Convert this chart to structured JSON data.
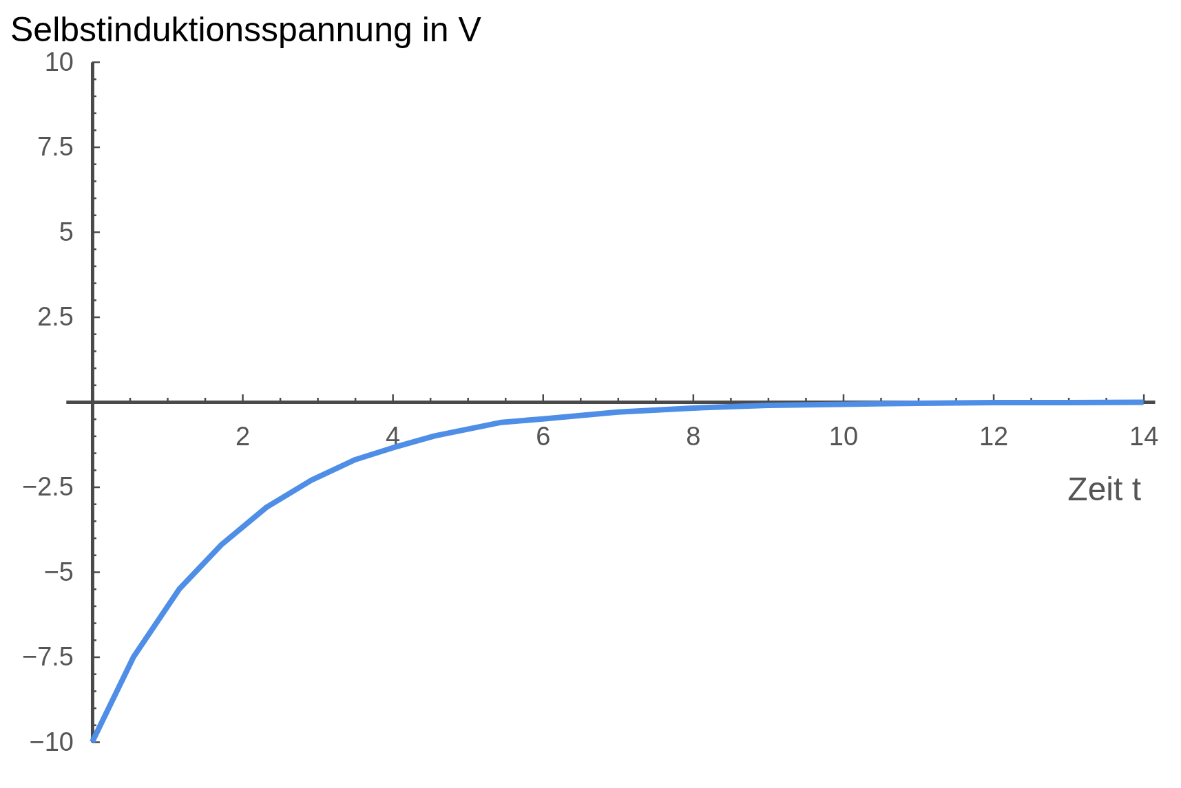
{
  "chart_data": {
    "type": "line",
    "ylabel": "Selbstinduktionsspannung in V",
    "xlabel": "Zeit t",
    "x": [
      0,
      0.55,
      1.16,
      1.72,
      2.32,
      2.92,
      3.5,
      4.0,
      4.56,
      5.45,
      6,
      7,
      8,
      9,
      10,
      11,
      12,
      13,
      14
    ],
    "series": [
      {
        "color": "#4f8ee6",
        "values": [
          -10,
          -7.5,
          -5.5,
          -4.2,
          -3.1,
          -2.3,
          -1.7,
          -1.35,
          -1.0,
          -0.6,
          -0.5,
          -0.3,
          -0.18,
          -0.1,
          -0.07,
          -0.04,
          -0.02,
          -0.02,
          -0.01
        ]
      }
    ],
    "xlim": [
      -0.35,
      14.15
    ],
    "ylim": [
      -10,
      10
    ],
    "xticks": [
      {
        "value": 0.5,
        "label": null
      },
      {
        "value": 1,
        "label": null
      },
      {
        "value": 1.5,
        "label": null
      },
      2,
      {
        "value": 2.5,
        "label": null
      },
      {
        "value": 3,
        "label": null
      },
      {
        "value": 3.5,
        "label": null
      },
      4,
      {
        "value": 4.5,
        "label": null
      },
      {
        "value": 5,
        "label": null
      },
      {
        "value": 5.5,
        "label": null
      },
      6,
      {
        "value": 6.5,
        "label": null
      },
      {
        "value": 7,
        "label": null
      },
      {
        "value": 7.5,
        "label": null
      },
      8,
      {
        "value": 8.5,
        "label": null
      },
      {
        "value": 9,
        "label": null
      },
      {
        "value": 9.5,
        "label": null
      },
      10,
      {
        "value": 10.5,
        "label": null
      },
      {
        "value": 11,
        "label": null
      },
      {
        "value": 11.5,
        "label": null
      },
      12,
      {
        "value": 12.5,
        "label": null
      },
      {
        "value": 13,
        "label": null
      },
      {
        "value": 13.5,
        "label": null
      },
      14
    ],
    "yticks": [
      {
        "value": -10,
        "label": "−10"
      },
      {
        "value": -9.5,
        "label": null
      },
      {
        "value": -9,
        "label": null
      },
      {
        "value": -8.5,
        "label": null
      },
      {
        "value": -8,
        "label": null
      },
      {
        "value": -7.5,
        "label": "−7.5"
      },
      {
        "value": -7,
        "label": null
      },
      {
        "value": -6.5,
        "label": null
      },
      {
        "value": -6,
        "label": null
      },
      {
        "value": -5.5,
        "label": null
      },
      {
        "value": -5,
        "label": "−5"
      },
      {
        "value": -4.5,
        "label": null
      },
      {
        "value": -4,
        "label": null
      },
      {
        "value": -3.5,
        "label": null
      },
      {
        "value": -3,
        "label": null
      },
      {
        "value": -2.5,
        "label": "−2.5"
      },
      {
        "value": -2,
        "label": null
      },
      {
        "value": -1.5,
        "label": null
      },
      {
        "value": -1,
        "label": null
      },
      {
        "value": -0.5,
        "label": null
      },
      {
        "value": 0.5,
        "label": null
      },
      {
        "value": 1,
        "label": null
      },
      {
        "value": 1.5,
        "label": null
      },
      {
        "value": 2,
        "label": null
      },
      2.5,
      {
        "value": 3,
        "label": null
      },
      {
        "value": 3.5,
        "label": null
      },
      {
        "value": 4,
        "label": null
      },
      {
        "value": 4.5,
        "label": null
      },
      5,
      {
        "value": 5.5,
        "label": null
      },
      {
        "value": 6,
        "label": null
      },
      {
        "value": 6.5,
        "label": null
      },
      {
        "value": 7,
        "label": null
      },
      7.5,
      {
        "value": 8,
        "label": null
      },
      {
        "value": 8.5,
        "label": null
      },
      {
        "value": 9,
        "label": null
      },
      {
        "value": 9.5,
        "label": null
      },
      10
    ]
  }
}
